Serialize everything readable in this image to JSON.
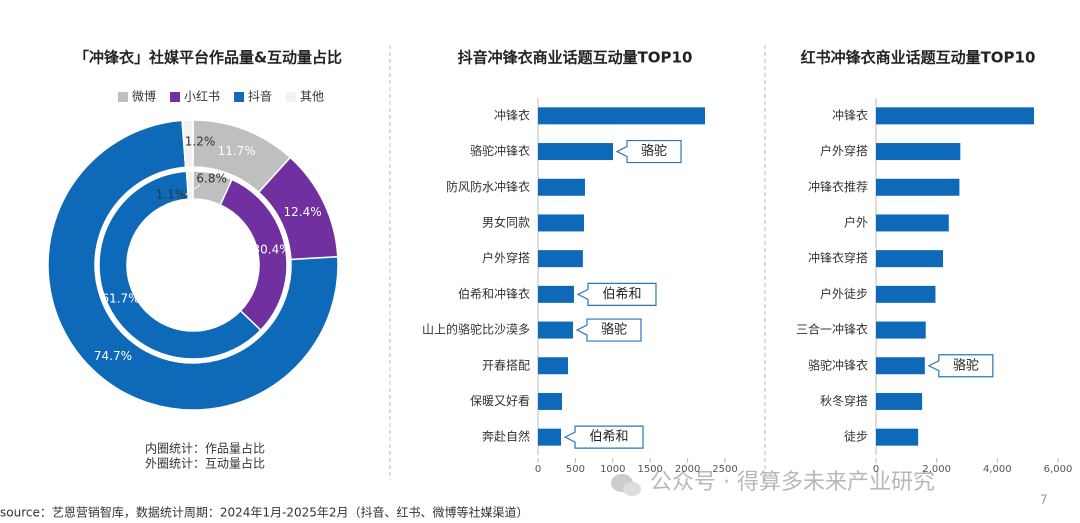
{
  "chart_data": [
    {
      "type": "donut",
      "title": "「冲锋衣」社媒平台作品量&互动量占比",
      "categories": [
        "微博",
        "小红书",
        "抖音",
        "其他"
      ],
      "colors": [
        "#bfbfbf",
        "#7030a0",
        "#0e6ab8",
        "#f2f2f2"
      ],
      "rings": [
        {
          "values": [
            6.8,
            30.4,
            61.7,
            1.1
          ],
          "value_labels": [
            "6.8%",
            "30.4%",
            "61.7%",
            "1.1%"
          ]
        },
        {
          "values": [
            11.7,
            12.4,
            74.7,
            1.2
          ],
          "value_labels": [
            "11.7%",
            "12.4%",
            "74.7%",
            "1.2%"
          ]
        }
      ],
      "notes": [
        "内圈统计：作品量占比",
        "外圈统计：互动量占比"
      ]
    },
    {
      "type": "bar",
      "orientation": "horizontal",
      "title": "抖音冲锋衣商业话题互动量TOP10",
      "categories": [
        "冲锋衣",
        "骆驼冲锋衣",
        "防风防水冲锋衣",
        "男女同款",
        "户外穿搭",
        "伯希和冲锋衣",
        "山上的骆驼比沙漠多",
        "开春搭配",
        "保暖又好看",
        "奔赴自然"
      ],
      "values": [
        2233,
        1003,
        628,
        615,
        600,
        481,
        468,
        401,
        321,
        308
      ],
      "callouts": [
        null,
        "骆驼",
        null,
        null,
        null,
        "伯希和",
        "骆驼",
        null,
        null,
        "伯希和"
      ],
      "color": "#0e6ab8",
      "xlim": [
        0,
        2500
      ],
      "xticks": [
        0,
        500,
        1000,
        1500,
        2000,
        2500
      ]
    },
    {
      "type": "bar",
      "orientation": "horizontal",
      "title": "红书冲锋衣商业话题互动量TOP10",
      "categories": [
        "冲锋衣",
        "户外穿搭",
        "冲锋衣推荐",
        "户外",
        "冲锋衣穿搭",
        "户外徒步",
        "三合一冲锋衣",
        "骆驼冲锋衣",
        "秋冬穿搭",
        "徒步"
      ],
      "values": [
        5210,
        2780,
        2750,
        2400,
        2210,
        1960,
        1640,
        1610,
        1520,
        1390
      ],
      "callouts": [
        null,
        null,
        null,
        null,
        null,
        null,
        null,
        "骆驼",
        null,
        null
      ],
      "color": "#0e6ab8",
      "xlim": [
        0,
        6000
      ],
      "xticks": [
        0,
        {
          "value": 2000,
          "label": "2,000"
        },
        {
          "value": 4000,
          "label": "4,000"
        },
        {
          "value": 6000,
          "label": "6,000"
        }
      ]
    }
  ],
  "source": "source：艺恩营销智库，数据统计周期：2024年1月-2025年2月（抖音、红书、微博等社媒渠道）",
  "watermark": "公众号 · 得算多未来产业研究",
  "page_number": "7"
}
